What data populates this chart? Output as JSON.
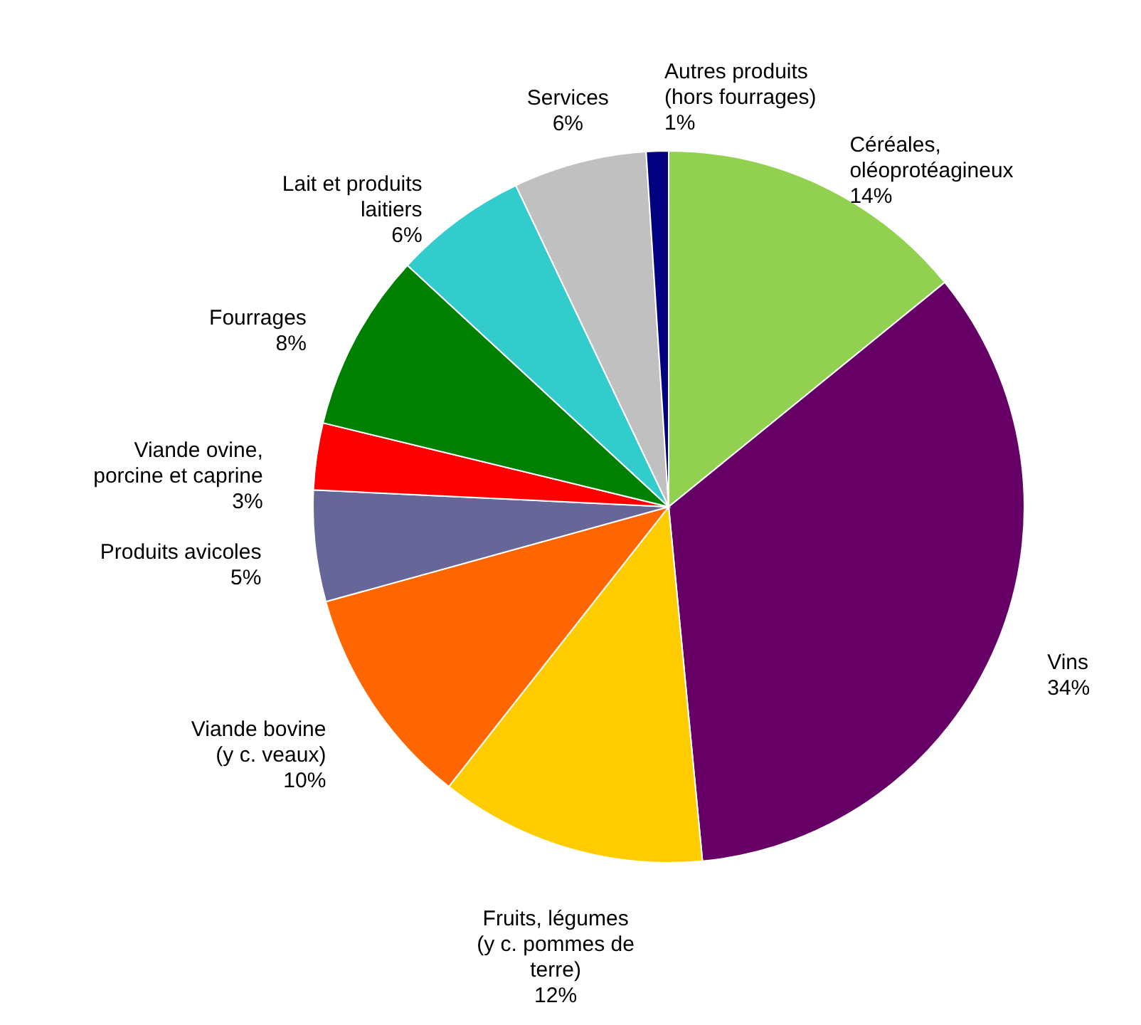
{
  "chart_data": {
    "type": "pie",
    "categories": [
      "Céréales, oléoprotéagineux",
      "Vins",
      "Fruits, légumes (y c. pommes de terre)",
      "Viande bovine (y c. veaux)",
      "Produits avicoles",
      "Viande ovine, porcine et caprine",
      "Fourrages",
      "Lait et produits laitiers",
      "Services",
      "Autres produits (hors fourrages)"
    ],
    "values": [
      14,
      34,
      12,
      10,
      5,
      3,
      8,
      6,
      6,
      1
    ],
    "value_labels": [
      "14%",
      "34%",
      "12%",
      "10%",
      "5%",
      "3%",
      "8%",
      "6%",
      "6%",
      "1%"
    ],
    "colors": [
      "#92d050",
      "#660066",
      "#ffcc00",
      "#ff6600",
      "#666699",
      "#ff0000",
      "#008000",
      "#33cccc",
      "#c0c0c0",
      "#000080"
    ]
  }
}
